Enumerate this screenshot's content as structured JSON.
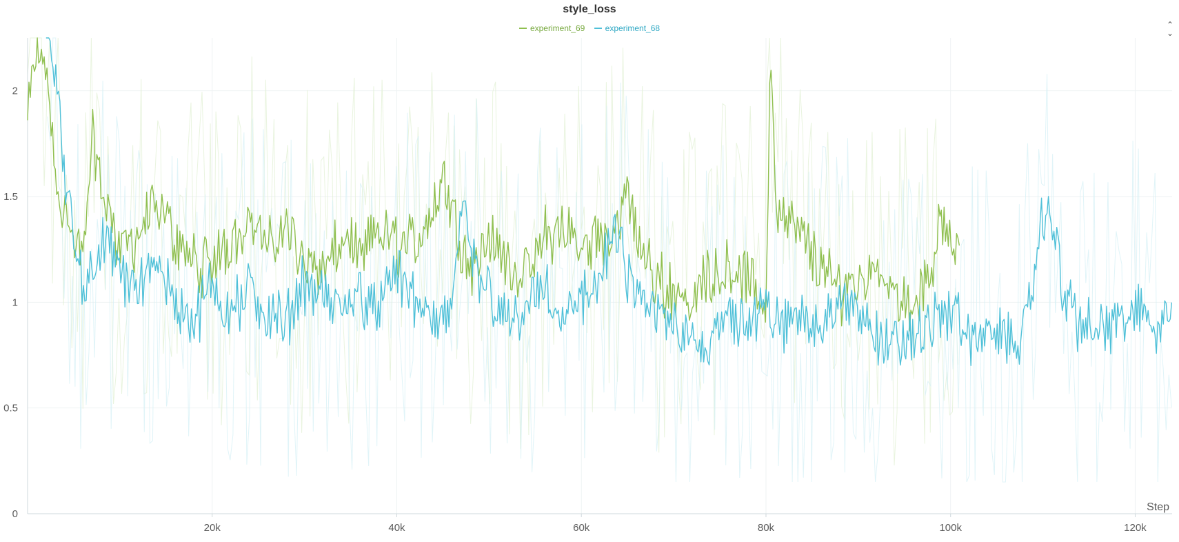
{
  "chart_data": {
    "type": "line",
    "title": "style_loss",
    "xlabel": "Step",
    "ylabel": "",
    "xlim": [
      0,
      124000
    ],
    "ylim": [
      0,
      2.25
    ],
    "x_ticks": [
      20000,
      40000,
      60000,
      80000,
      100000,
      120000
    ],
    "x_tick_labels": [
      "20k",
      "40k",
      "60k",
      "80k",
      "100k",
      "120k"
    ],
    "y_ticks": [
      0,
      0.5,
      1,
      1.5,
      2
    ],
    "y_tick_labels": [
      "0",
      "0.5",
      "1",
      "1.5",
      "2"
    ],
    "grid": true,
    "legend_position": "top-center",
    "series": [
      {
        "name": "experiment_69",
        "color": "#8fbf4f",
        "x": [
          0,
          1000,
          2000,
          3000,
          4000,
          5000,
          6000,
          7000,
          8000,
          9000,
          10000,
          12000,
          14000,
          16000,
          18000,
          20000,
          22000,
          24000,
          26000,
          28000,
          30000,
          32000,
          34000,
          36000,
          38000,
          40000,
          42000,
          44000,
          45000,
          46000,
          48000,
          50000,
          52000,
          54000,
          56000,
          58000,
          60000,
          62000,
          64000,
          65000,
          66000,
          68000,
          70000,
          72000,
          74000,
          76000,
          78000,
          80000,
          80500,
          81000,
          82000,
          84000,
          86000,
          88000,
          90000,
          92000,
          94000,
          96000,
          98000,
          99000,
          100000,
          101000
        ],
        "values": [
          1.85,
          2.25,
          2.1,
          1.6,
          1.45,
          1.25,
          1.2,
          1.8,
          1.55,
          1.4,
          1.25,
          1.3,
          1.45,
          1.3,
          1.2,
          1.15,
          1.3,
          1.4,
          1.25,
          1.35,
          1.2,
          1.15,
          1.3,
          1.2,
          1.35,
          1.25,
          1.3,
          1.45,
          1.6,
          1.45,
          1.15,
          1.3,
          1.2,
          1.1,
          1.3,
          1.35,
          1.25,
          1.3,
          1.35,
          1.55,
          1.3,
          1.1,
          1.05,
          1.0,
          1.15,
          1.2,
          1.1,
          1.0,
          2.25,
          1.5,
          1.4,
          1.3,
          1.15,
          1.05,
          1.1,
          1.2,
          1.05,
          0.95,
          1.15,
          1.4,
          1.3,
          1.2
        ]
      },
      {
        "name": "experiment_68",
        "color": "#4fc0d8",
        "x": [
          2000,
          3000,
          4000,
          5000,
          6000,
          8000,
          10000,
          12000,
          14000,
          16000,
          18000,
          20000,
          22000,
          24000,
          26000,
          28000,
          30000,
          32000,
          34000,
          36000,
          38000,
          40000,
          42000,
          44000,
          46000,
          47000,
          48000,
          50000,
          52000,
          54000,
          56000,
          58000,
          60000,
          62000,
          64000,
          66000,
          68000,
          70000,
          72000,
          74000,
          76000,
          78000,
          80000,
          82000,
          84000,
          86000,
          88000,
          90000,
          92000,
          94000,
          96000,
          98000,
          100000,
          102000,
          104000,
          106000,
          108000,
          110000,
          111000,
          112000,
          114000,
          116000,
          118000,
          120000,
          122000,
          124000
        ],
        "values": [
          2.25,
          2.1,
          1.6,
          1.3,
          1.05,
          1.3,
          1.15,
          1.05,
          1.2,
          1.0,
          0.9,
          1.1,
          0.95,
          1.05,
          0.95,
          0.9,
          1.1,
          1.0,
          0.95,
          1.05,
          0.95,
          1.15,
          1.0,
          0.9,
          0.95,
          1.45,
          1.2,
          1.05,
          0.9,
          0.95,
          1.05,
          0.9,
          1.0,
          1.15,
          1.3,
          1.0,
          0.95,
          0.9,
          0.85,
          0.8,
          0.95,
          0.9,
          0.95,
          0.9,
          0.95,
          0.9,
          1.0,
          0.95,
          0.85,
          0.8,
          0.85,
          0.9,
          0.95,
          0.85,
          0.85,
          0.8,
          0.85,
          1.4,
          1.45,
          1.05,
          0.9,
          0.85,
          0.9,
          0.95,
          0.9,
          0.95
        ]
      }
    ]
  }
}
